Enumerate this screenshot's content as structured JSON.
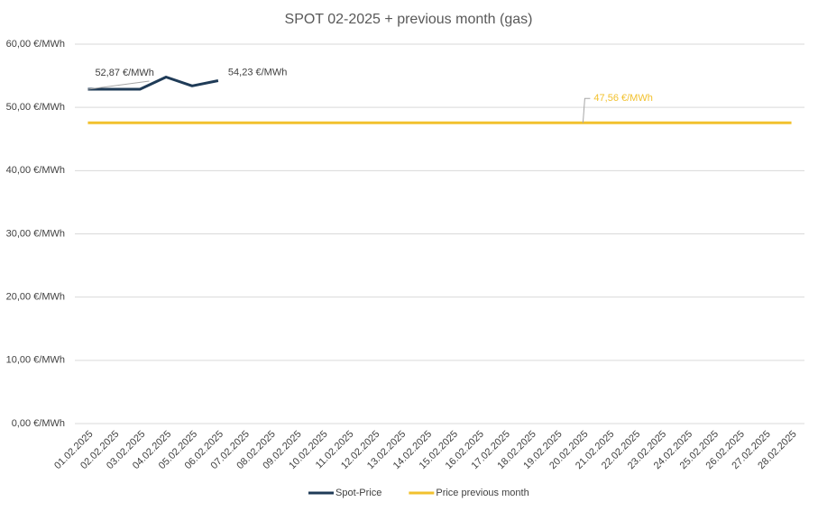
{
  "chart_data": {
    "type": "line",
    "title": "SPOT 02-2025 + previous month (gas)",
    "categories": [
      "01.02.2025",
      "02.02.2025",
      "03.02.2025",
      "04.02.2025",
      "05.02.2025",
      "06.02.2025",
      "07.02.2025",
      "08.02.2025",
      "09.02.2025",
      "10.02.2025",
      "11.02.2025",
      "12.02.2025",
      "13.02.2025",
      "14.02.2025",
      "15.02.2025",
      "16.02.2025",
      "17.02.2025",
      "18.02.2025",
      "19.02.2025",
      "20.02.2025",
      "21.02.2025",
      "22.02.2025",
      "23.02.2025",
      "24.02.2025",
      "25.02.2025",
      "26.02.2025",
      "27.02.2025",
      "28.02.2025"
    ],
    "series": [
      {
        "name": "Spot-Price",
        "color": "#1f3b57",
        "values": [
          52.87,
          52.87,
          52.87,
          54.8,
          53.4,
          54.23,
          null,
          null,
          null,
          null,
          null,
          null,
          null,
          null,
          null,
          null,
          null,
          null,
          null,
          null,
          null,
          null,
          null,
          null,
          null,
          null,
          null,
          null
        ],
        "value_labels": [
          "52,87 €/MWh",
          null,
          null,
          null,
          null,
          "54,23 €/MWh",
          null,
          null,
          null,
          null,
          null,
          null,
          null,
          null,
          null,
          null,
          null,
          null,
          null,
          null,
          null,
          null,
          null,
          null,
          null,
          null,
          null,
          null
        ]
      },
      {
        "name": "Price previous month",
        "color": "#f2c12e",
        "values": [
          47.56,
          47.56,
          47.56,
          47.56,
          47.56,
          47.56,
          47.56,
          47.56,
          47.56,
          47.56,
          47.56,
          47.56,
          47.56,
          47.56,
          47.56,
          47.56,
          47.56,
          47.56,
          47.56,
          47.56,
          47.56,
          47.56,
          47.56,
          47.56,
          47.56,
          47.56,
          47.56,
          47.56
        ],
        "value_labels": [
          null,
          null,
          null,
          null,
          null,
          null,
          null,
          null,
          null,
          null,
          null,
          null,
          null,
          null,
          null,
          null,
          null,
          null,
          null,
          "47,56 €/MWh",
          null,
          null,
          null,
          null,
          null,
          null,
          null,
          null
        ]
      }
    ],
    "ylim": [
      0,
      60
    ],
    "yticks": [
      {
        "value": 0,
        "label": "0,00 €/MWh"
      },
      {
        "value": 10,
        "label": "10,00 €/MWh"
      },
      {
        "value": 20,
        "label": "20,00 €/MWh"
      },
      {
        "value": 30,
        "label": "30,00 €/MWh"
      },
      {
        "value": 40,
        "label": "40,00 €/MWh"
      },
      {
        "value": 50,
        "label": "50,00 €/MWh"
      },
      {
        "value": 60,
        "label": "60,00 €/MWh"
      }
    ],
    "grid": true,
    "legend": "bottom"
  }
}
